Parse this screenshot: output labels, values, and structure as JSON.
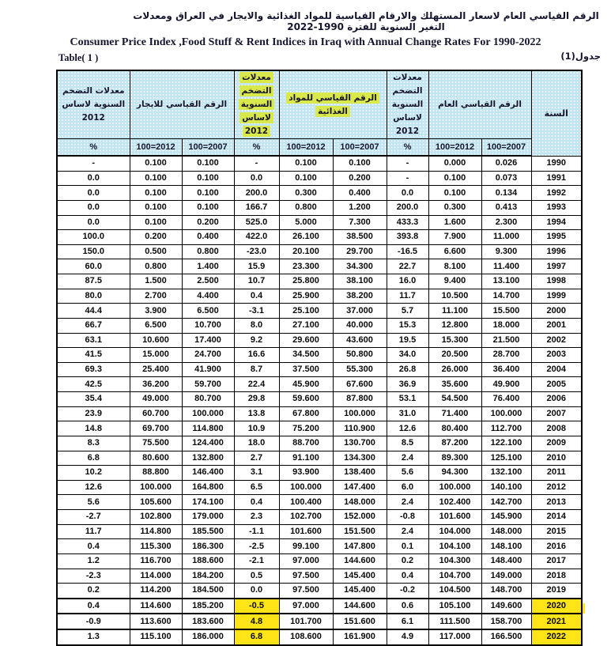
{
  "titles": {
    "arabic": "الرقم القياسي العام لاسعار المستهلك والارقام القياسية للمواد الغذائية والايجار في العراق ومعدلات التغير السنوية للفترة 1990-2022",
    "english": "Consumer Price Index ,Food Stuff & Rent Indices in Iraq with Annual Change Rates For 1990-2022",
    "table_label_en": "Table( 1 )",
    "table_label_ar": "جدول(1)"
  },
  "colors": {
    "header_bg": "#c3e5f1",
    "header_highlight": "#d9e84b",
    "row_highlight": "#ffe417",
    "border": "#000000",
    "text": "#15152e"
  },
  "table": {
    "header": {
      "rent_inflation": "معدلات التضخم السنوية لاساس 2012",
      "rent_index": "الرقم القياسي للايجار",
      "food_inflation": "معدلات التضخم السنوية لاساس 2012",
      "food_index": "الرقم القياسي للمواد الغذائية",
      "general_inflation": "معدلات التضخم السنوية لاساس 2012",
      "general_index": "الرقم القياسي العام",
      "year": "السنة",
      "pct": "%",
      "base_2012": "100=2012",
      "base_2007": "100=2007"
    },
    "columns": [
      "rent_annual_inflation_pct",
      "rent_index_100_2012",
      "rent_index_100_2007",
      "food_annual_inflation_pct",
      "food_index_100_2012",
      "food_index_100_2007",
      "general_annual_inflation_pct",
      "general_index_100_2012",
      "general_index_100_2007",
      "year"
    ],
    "emphasis_years": [
      "2020",
      "2021",
      "2022"
    ],
    "rows": [
      [
        "-",
        "0.100",
        "0.100",
        "-",
        "0.100",
        "0.100",
        "-",
        "0.000",
        "0.026",
        "1990"
      ],
      [
        "0.0",
        "0.100",
        "0.100",
        "0.0",
        "0.100",
        "0.200",
        "-",
        "0.100",
        "0.073",
        "1991"
      ],
      [
        "0.0",
        "0.100",
        "0.100",
        "200.0",
        "0.300",
        "0.400",
        "0.0",
        "0.100",
        "0.134",
        "1992"
      ],
      [
        "0.0",
        "0.100",
        "0.100",
        "166.7",
        "0.800",
        "1.200",
        "200.0",
        "0.300",
        "0.413",
        "1993"
      ],
      [
        "0.0",
        "0.100",
        "0.200",
        "525.0",
        "5.000",
        "7.300",
        "433.3",
        "1.600",
        "2.300",
        "1994"
      ],
      [
        "100.0",
        "0.200",
        "0.400",
        "422.0",
        "26.100",
        "38.500",
        "393.8",
        "7.900",
        "11.000",
        "1995"
      ],
      [
        "150.0",
        "0.500",
        "0.800",
        "-23.0",
        "20.100",
        "29.700",
        "-16.5",
        "6.600",
        "9.300",
        "1996"
      ],
      [
        "60.0",
        "0.800",
        "1.400",
        "15.9",
        "23.300",
        "34.300",
        "22.7",
        "8.100",
        "11.400",
        "1997"
      ],
      [
        "87.5",
        "1.500",
        "2.500",
        "10.7",
        "25.800",
        "38.100",
        "16.0",
        "9.400",
        "13.100",
        "1998"
      ],
      [
        "80.0",
        "2.700",
        "4.400",
        "0.4",
        "25.900",
        "38.200",
        "11.7",
        "10.500",
        "14.700",
        "1999"
      ],
      [
        "44.4",
        "3.900",
        "6.500",
        "-3.1",
        "25.100",
        "37.000",
        "5.7",
        "11.100",
        "15.500",
        "2000"
      ],
      [
        "66.7",
        "6.500",
        "10.700",
        "8.0",
        "27.100",
        "40.000",
        "15.3",
        "12.800",
        "18.000",
        "2001"
      ],
      [
        "63.1",
        "10.600",
        "17.400",
        "9.2",
        "29.600",
        "43.600",
        "19.5",
        "15.300",
        "21.500",
        "2002"
      ],
      [
        "41.5",
        "15.000",
        "24.700",
        "16.6",
        "34.500",
        "50.800",
        "34.0",
        "20.500",
        "28.700",
        "2003"
      ],
      [
        "69.3",
        "25.400",
        "41.900",
        "8.7",
        "37.500",
        "55.300",
        "26.8",
        "26.000",
        "36.400",
        "2004"
      ],
      [
        "42.5",
        "36.200",
        "59.700",
        "22.4",
        "45.900",
        "67.600",
        "36.9",
        "35.600",
        "49.900",
        "2005"
      ],
      [
        "35.4",
        "49.000",
        "80.700",
        "29.8",
        "59.600",
        "87.800",
        "53.1",
        "54.500",
        "76.400",
        "2006"
      ],
      [
        "23.9",
        "60.700",
        "100.000",
        "13.8",
        "67.800",
        "100.000",
        "31.0",
        "71.400",
        "100.000",
        "2007"
      ],
      [
        "14.8",
        "69.700",
        "114.800",
        "10.9",
        "75.200",
        "110.900",
        "12.6",
        "80.400",
        "112.700",
        "2008"
      ],
      [
        "8.3",
        "75.500",
        "124.400",
        "18.0",
        "88.700",
        "130.700",
        "8.5",
        "87.200",
        "122.100",
        "2009"
      ],
      [
        "6.8",
        "80.600",
        "132.800",
        "2.7",
        "91.100",
        "134.300",
        "2.4",
        "89.300",
        "125.100",
        "2010"
      ],
      [
        "10.2",
        "88.800",
        "146.400",
        "3.1",
        "93.900",
        "138.400",
        "5.6",
        "94.300",
        "132.100",
        "2011"
      ],
      [
        "12.6",
        "100.000",
        "164.800",
        "6.5",
        "100.000",
        "147.400",
        "6.0",
        "100.000",
        "140.100",
        "2012"
      ],
      [
        "5.6",
        "105.600",
        "174.100",
        "0.4",
        "100.400",
        "148.000",
        "2.4",
        "102.400",
        "142.700",
        "2013"
      ],
      [
        "-2.7",
        "102.800",
        "179.000",
        "2.3",
        "102.700",
        "152.000",
        "-0.8",
        "101.600",
        "145.900",
        "2014"
      ],
      [
        "11.7",
        "114.800",
        "185.500",
        "-1.1",
        "101.600",
        "151.500",
        "2.4",
        "104.000",
        "148.000",
        "2015"
      ],
      [
        "0.4",
        "115.300",
        "186.300",
        "-2.5",
        "99.100",
        "147.800",
        "0.1",
        "104.100",
        "148.100",
        "2016"
      ],
      [
        "1.2",
        "116.700",
        "188.600",
        "-2.1",
        "97.000",
        "144.600",
        "0.2",
        "104.300",
        "148.400",
        "2017"
      ],
      [
        "-2.3",
        "114.000",
        "184.200",
        "0.5",
        "97.500",
        "145.400",
        "0.4",
        "104.700",
        "149.000",
        "2018"
      ],
      [
        "0.2",
        "114.200",
        "184.500",
        "0.0",
        "97.500",
        "145.400",
        "-0.2",
        "104.500",
        "148.700",
        "2019"
      ],
      [
        "0.4",
        "114.600",
        "185.200",
        "-0.5",
        "97.000",
        "144.600",
        "0.6",
        "105.100",
        "149.600",
        "2020"
      ],
      [
        "-0.9",
        "113.600",
        "183.600",
        "4.8",
        "101.700",
        "151.600",
        "6.1",
        "111.500",
        "158.700",
        "2021"
      ],
      [
        "1.3",
        "115.100",
        "186.000",
        "6.8",
        "108.600",
        "161.900",
        "4.9",
        "117.000",
        "166.500",
        "2022"
      ]
    ]
  }
}
